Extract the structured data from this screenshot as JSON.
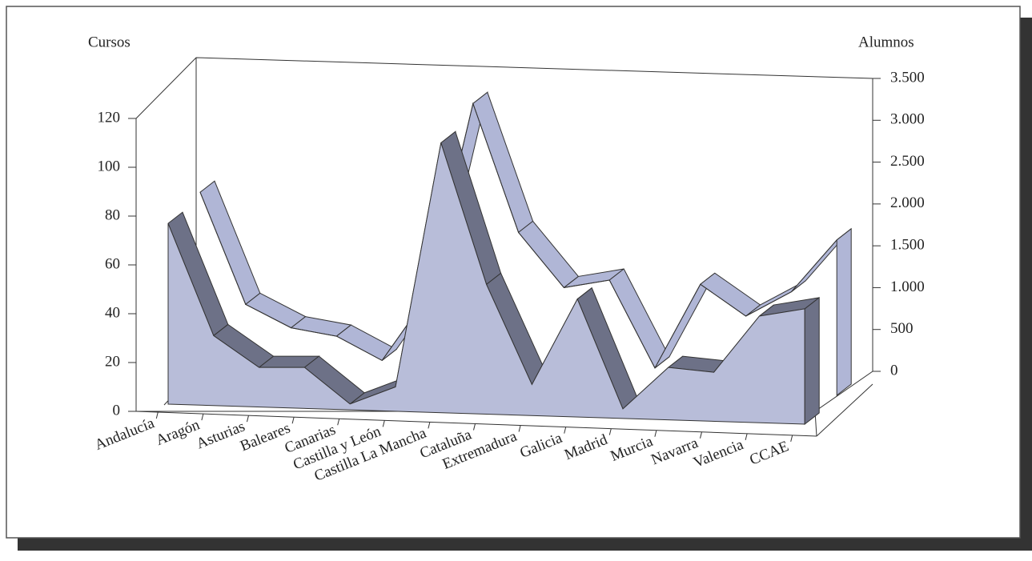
{
  "chart_data": {
    "type": "area3d",
    "y_label": "Cursos",
    "y2_label": "Alumnos",
    "categories": [
      "Andalucía",
      "Aragón",
      "Asturias",
      "Baleares",
      "Canarias",
      "Castilla y León",
      "Castilla La Mancha",
      "Cataluña",
      "Extremadura",
      "Galicia",
      "Madrid",
      "Murcia",
      "Navarra",
      "Valencia",
      "CCAE"
    ],
    "series": [
      {
        "name": "Cursos",
        "color": "#b8bdd9",
        "values": [
          77,
          31,
          18,
          18,
          3,
          10,
          110,
          52,
          11,
          46,
          1,
          18,
          16,
          39,
          42
        ]
      },
      {
        "name": "Alumnos",
        "color": "#b0b6d6",
        "axis": "y2",
        "values": [
          2140,
          800,
          520,
          420,
          130,
          900,
          3200,
          1660,
          1000,
          1090,
          40,
          1040,
          660,
          950,
          1570
        ]
      }
    ],
    "ylim": [
      0,
      120
    ],
    "yticks": [
      0,
      20,
      40,
      60,
      80,
      100,
      120
    ],
    "y2lim": [
      0,
      3500
    ],
    "y2ticks": [
      0,
      500,
      {
        "value": 1000,
        "label": "1.000"
      },
      {
        "value": 1500,
        "label": "1.500"
      },
      {
        "value": 2000,
        "label": "2.000"
      },
      {
        "value": 2500,
        "label": "2.500"
      },
      {
        "value": 3000,
        "label": "3.000"
      },
      {
        "value": 3500,
        "label": "3.500"
      }
    ]
  }
}
